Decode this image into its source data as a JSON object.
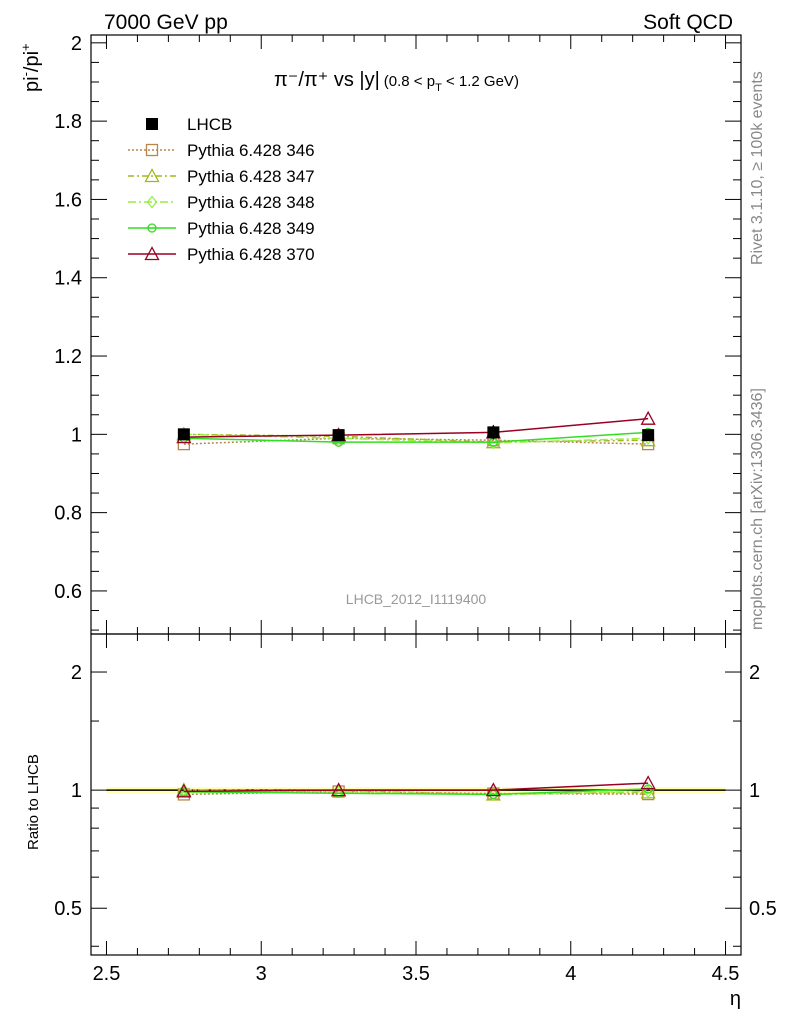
{
  "header": {
    "left": "7000 GeV pp",
    "right": "Soft QCD"
  },
  "side_labels": {
    "rivet": "Rivet 3.1.10, ≥ 100k events",
    "source": "mcplots.cern.ch [arXiv:1306.3436]"
  },
  "watermark": "LHCB_2012_I1119400",
  "chart_data": {
    "type": "line",
    "title_main": "π⁻/π⁺ vs |y|",
    "title_cut": "(0.8 < p",
    "title_cut_sub": "T",
    "title_cut_end": " < 1.2 GeV)",
    "ylabel_base": "pi",
    "ylabel_sup1": "-",
    "ylabel_mid": "/pi",
    "ylabel_sup2": "+",
    "ratio_ylabel": "Ratio to LHCB",
    "xlabel": "η",
    "xlim": [
      2.45,
      4.55
    ],
    "ylim": [
      0.49,
      2.02
    ],
    "ratio_ylim": [
      0.38,
      2.5
    ],
    "x_ticks": [
      "2.5",
      "3",
      "3.5",
      "4",
      "4.5"
    ],
    "y_ticks": [
      "0.6",
      "0.8",
      "1",
      "1.2",
      "1.4",
      "1.6",
      "1.8",
      "2"
    ],
    "ratio_y_ticks": [
      "0.5",
      "1",
      "2"
    ],
    "x": [
      2.75,
      3.25,
      3.75,
      4.25
    ],
    "data": {
      "name": "LHCB",
      "values": [
        1.0,
        0.998,
        1.005,
        0.998
      ],
      "errors": [
        0.012,
        0.012,
        0.018,
        0.015
      ],
      "color": "#000000"
    },
    "series": [
      {
        "name": "Pythia 6.428 346",
        "values": [
          0.975,
          0.99,
          0.985,
          0.975
        ],
        "color": "#b8864b",
        "dash": "2,2",
        "marker": "square"
      },
      {
        "name": "Pythia 6.428 347",
        "values": [
          1.0,
          0.995,
          0.98,
          0.985
        ],
        "color": "#a0b820",
        "dash": "6,3,2,3",
        "marker": "triangle"
      },
      {
        "name": "Pythia 6.428 348",
        "values": [
          1.0,
          0.99,
          0.978,
          0.99
        ],
        "color": "#99ee44",
        "dash": "8,3,2,3",
        "marker": "diamond"
      },
      {
        "name": "Pythia 6.428 349",
        "values": [
          0.99,
          0.98,
          0.98,
          1.005
        ],
        "color": "#33dd22",
        "dash": "",
        "marker": "circle"
      },
      {
        "name": "Pythia 6.428 370",
        "values": [
          0.993,
          0.998,
          1.005,
          1.04
        ],
        "color": "#990022",
        "dash": "",
        "marker": "triangle"
      }
    ]
  }
}
